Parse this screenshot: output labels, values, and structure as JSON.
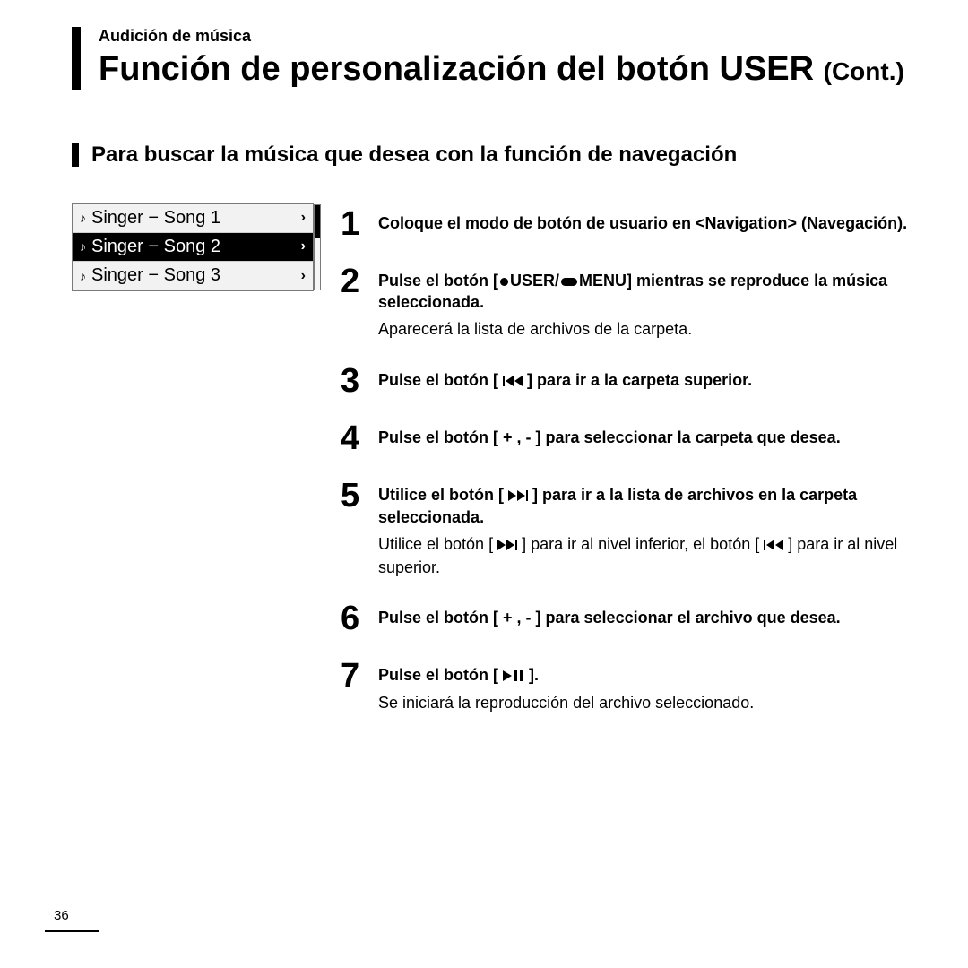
{
  "header": {
    "breadcrumb": "Audición de música",
    "title_main": "Función de personalización del botón USER ",
    "title_cont": "(Cont.)"
  },
  "subheading": "Para buscar la música que desea con la función de navegación",
  "device": {
    "rows": [
      {
        "label": "Singer − Song 1",
        "selected": false
      },
      {
        "label": "Singer − Song 2",
        "selected": true
      },
      {
        "label": "Singer − Song 3",
        "selected": false
      }
    ],
    "chevron": "›"
  },
  "steps": [
    {
      "n": "1",
      "bold": "Coloque el modo de botón de usuario en <Navigation> (Navegación)."
    },
    {
      "n": "2",
      "bold_pre": "Pulse el botón [",
      "bold_mid": "USER/",
      "bold_post": "MENU] mientras se reproduce la música seleccionada.",
      "note": "Aparecerá la lista de archivos de la carpeta."
    },
    {
      "n": "3",
      "bold_pre": "Pulse el botón [ ",
      "bold_post": " ] para ir a la carpeta superior.",
      "icon": "skip-prev"
    },
    {
      "n": "4",
      "bold": "Pulse el botón [ + , - ] para seleccionar la carpeta que desea."
    },
    {
      "n": "5",
      "bold_pre": "Utilice el botón [ ",
      "bold_post": " ] para ir a la lista de archivos en la carpeta seleccionada.",
      "icon": "skip-next",
      "note_pre": "Utilice el botón [ ",
      "note_mid": " ] para ir al nivel inferior, el botón [ ",
      "note_post": " ] para ir al nivel superior."
    },
    {
      "n": "6",
      "bold": "Pulse el botón [ + , - ] para seleccionar el archivo que desea."
    },
    {
      "n": "7",
      "bold_pre": "Pulse el botón [ ",
      "bold_post": " ].",
      "icon": "playpause",
      "note": "Se iniciará la reproducción del archivo seleccionado."
    }
  ],
  "page_number": "36",
  "colors": {
    "text": "#000000",
    "bg": "#ffffff",
    "row_bg": "#f2f2f2",
    "row_selected_bg": "#000000",
    "row_selected_fg": "#ffffff",
    "border": "#7a7a7a"
  }
}
